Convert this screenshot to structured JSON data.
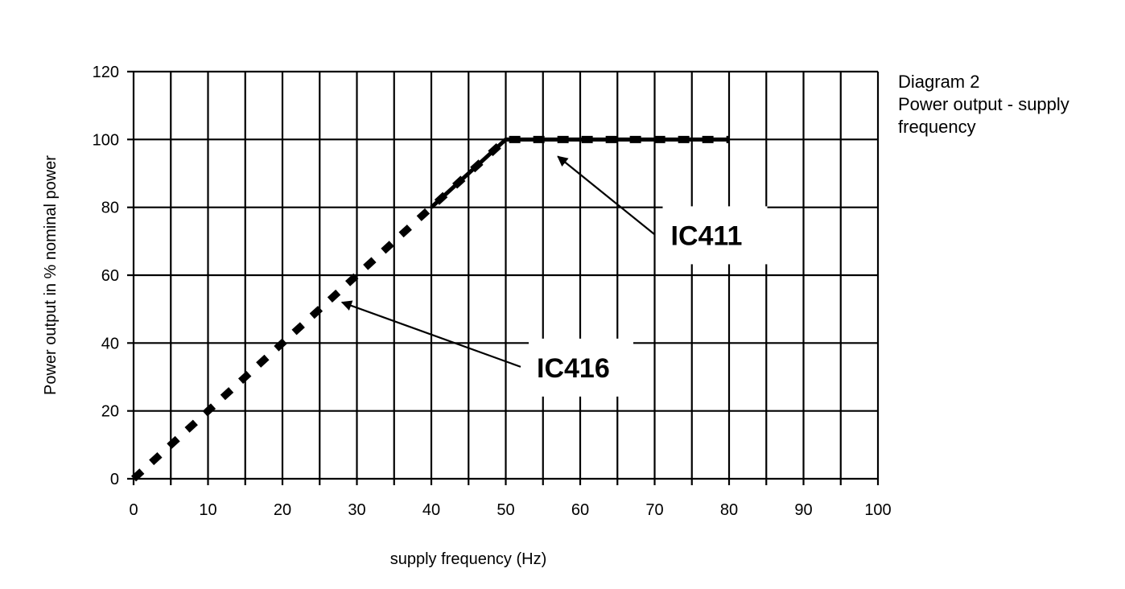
{
  "caption": {
    "line1": "Diagram 2",
    "line2": "Power output - supply",
    "line3": "frequency"
  },
  "chart_data": {
    "type": "line",
    "xlabel": "supply frequency (Hz)",
    "ylabel": "Power output in % nominal power",
    "xlim": [
      0,
      100
    ],
    "ylim": [
      0,
      120
    ],
    "x_ticks": [
      "0",
      "10",
      "20",
      "30",
      "40",
      "50",
      "60",
      "70",
      "80",
      "90",
      "100"
    ],
    "y_ticks": [
      "0",
      "20",
      "40",
      "60",
      "80",
      "100",
      "120"
    ],
    "x_grid_step": 5,
    "y_grid_step": 20,
    "grid": true,
    "series": [
      {
        "name": "IC416",
        "style": "dashed",
        "x": [
          0,
          50,
          80
        ],
        "y": [
          0,
          100,
          100
        ]
      },
      {
        "name": "IC411",
        "style": "solid",
        "x": [
          40,
          50,
          80
        ],
        "y": [
          80,
          100,
          100
        ]
      }
    ],
    "annotations": [
      {
        "text": "IC411",
        "points_to": {
          "x": 57,
          "y": 95
        },
        "from": {
          "x": 70,
          "y": 72
        }
      },
      {
        "text": "IC416",
        "points_to": {
          "x": 28,
          "y": 52
        },
        "from": {
          "x": 52,
          "y": 33
        }
      }
    ]
  }
}
